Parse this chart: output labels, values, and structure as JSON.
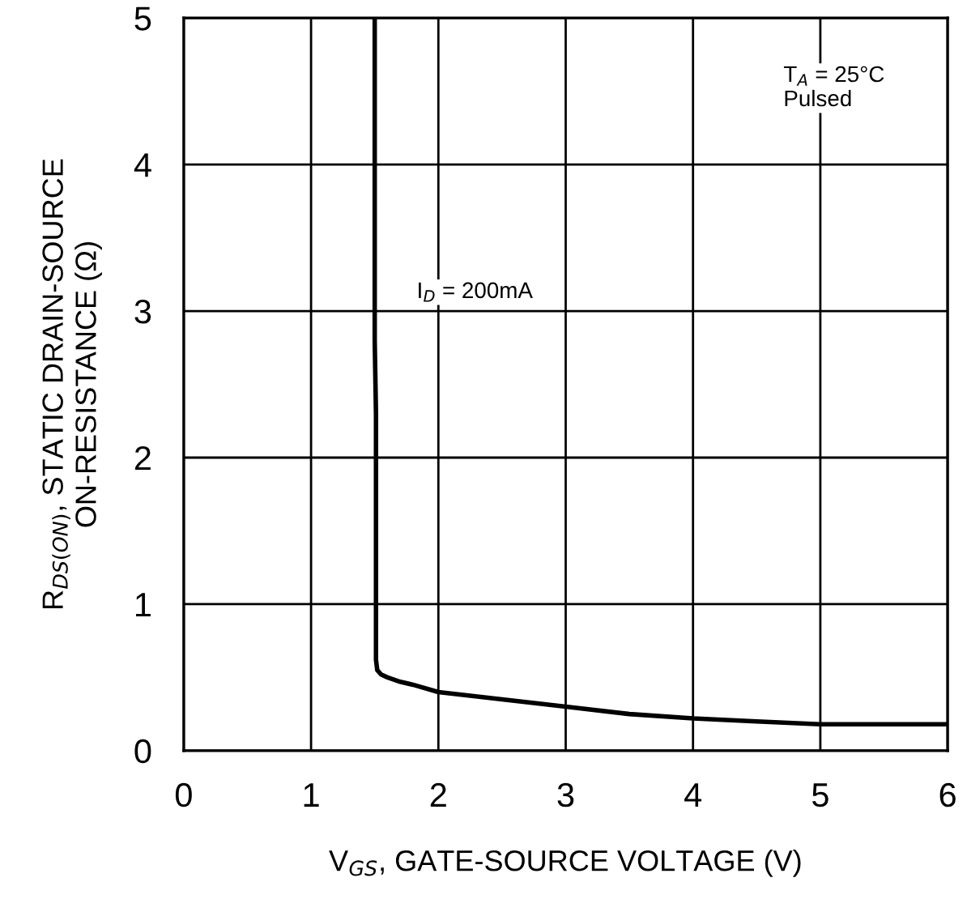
{
  "chart_data": {
    "type": "line",
    "xlabel": "V$_{GS}$, GATE-SOURCE VOLTAGE (V)",
    "ylabel": "R$_{DS(ON)}$, STATIC DRAIN-SOURCE\nON-RESISTANCE (Ω)",
    "annotations": [
      "T$_{A}$ = 25°C\nPulsed",
      "I$_{D}$ = 200mA"
    ],
    "series": [
      {
        "color": "#000000",
        "x": [
          1.5,
          1.5,
          1.51,
          1.51,
          1.52,
          1.55,
          1.6,
          1.7,
          1.8,
          2.0,
          2.5,
          3.0,
          3.5,
          4.0,
          4.5,
          5.0,
          5.5,
          6.0
        ],
        "values": [
          5.0,
          2.8,
          2.3,
          0.62,
          0.55,
          0.52,
          0.5,
          0.47,
          0.45,
          0.4,
          0.35,
          0.3,
          0.25,
          0.22,
          0.2,
          0.18,
          0.18,
          0.18
        ]
      }
    ],
    "xlim": [
      0,
      6
    ],
    "ylim": [
      0,
      5
    ],
    "xticks": [
      0,
      1,
      2,
      3,
      4,
      5,
      6
    ],
    "yticks": [
      0,
      1,
      2,
      3,
      4,
      5
    ],
    "grid": true,
    "line_style": "solid",
    "marker": "none"
  }
}
